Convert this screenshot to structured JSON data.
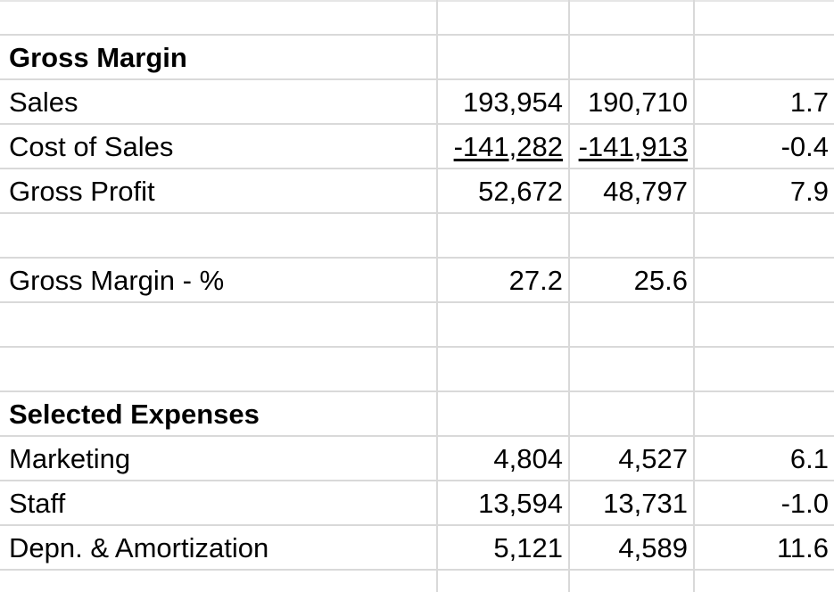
{
  "sheet": {
    "gross_margin": {
      "heading": "Gross Margin",
      "rows": [
        {
          "label": "Sales",
          "col1": "193,954",
          "col2": "190,710",
          "col3": "1.7",
          "underline": false
        },
        {
          "label": "Cost of Sales",
          "col1": "-141,282",
          "col2": "-141,913",
          "col3": "-0.4",
          "underline": true
        },
        {
          "label": "Gross Profit",
          "col1": "52,672",
          "col2": "48,797",
          "col3": "7.9",
          "underline": false
        }
      ],
      "margin_row": {
        "label": "Gross Margin - %",
        "col1": "27.2",
        "col2": "25.6",
        "col3": ""
      }
    },
    "selected_expenses": {
      "heading": "Selected Expenses",
      "rows": [
        {
          "label": "Marketing",
          "col1": "4,804",
          "col2": "4,527",
          "col3": "6.1"
        },
        {
          "label": "Staff",
          "col1": "13,594",
          "col2": "13,731",
          "col3": "-1.0"
        },
        {
          "label": "Depn. & Amortization",
          "col1": "5,121",
          "col2": "4,589",
          "col3": "11.6"
        }
      ]
    }
  }
}
